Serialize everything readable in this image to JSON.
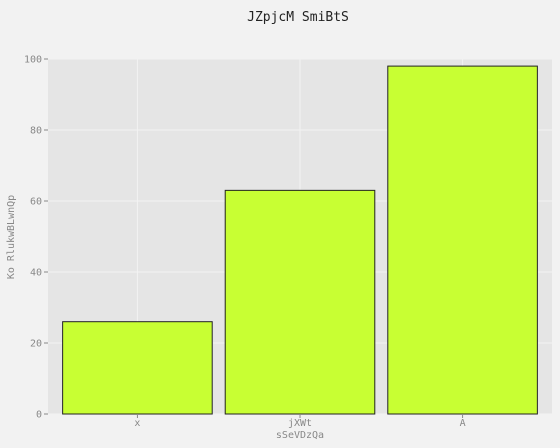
{
  "chart_data": {
    "type": "bar",
    "title": "JZpjcM SmiBtS",
    "xlabel": "sSeVDzQa",
    "ylabel": "Ko RlukwBLwnQp",
    "categories": [
      "x",
      "jXWt",
      "A"
    ],
    "values": [
      26,
      63,
      98
    ],
    "ylim": [
      0,
      100
    ],
    "yticks": [
      0,
      20,
      40,
      60,
      80,
      100
    ],
    "grid": true,
    "colors": {
      "bar": "#c8ff33",
      "bar_edge": "#222222",
      "plot_bg": "#e5e5e5",
      "grid": "#f2f2f2"
    }
  }
}
